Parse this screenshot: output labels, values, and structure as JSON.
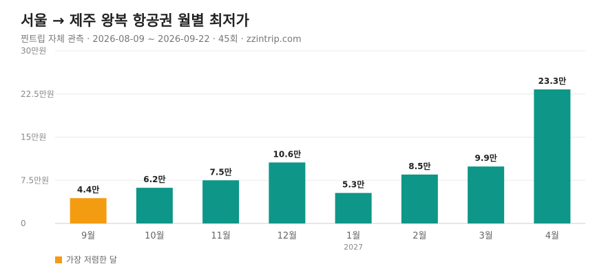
{
  "header": {
    "title": "서울 → 제주 왕복 항공권 월별 최저가",
    "subtitle": "찐트립 자체 관측 · 2026-08-09 ~ 2026-09-22 · 45회 · zzintrip.com"
  },
  "legend": {
    "label": "가장 저렴한 달",
    "color": "#F39C12"
  },
  "chart_data": {
    "type": "bar",
    "title": "서울 → 제주 왕복 항공권 월별 최저가",
    "xlabel": "",
    "ylabel": "",
    "ylim": [
      0,
      30
    ],
    "yticks": [
      {
        "value": 0,
        "label": "0"
      },
      {
        "value": 7.5,
        "label": "7.5만원"
      },
      {
        "value": 15,
        "label": "15만원"
      },
      {
        "value": 22.5,
        "label": "22.5만원"
      },
      {
        "value": 30,
        "label": "30만원"
      }
    ],
    "categories": [
      "9월",
      "10월",
      "11월",
      "12월",
      "1월",
      "2월",
      "3월",
      "4월"
    ],
    "category_sublabels": [
      "",
      "",
      "",
      "",
      "2027",
      "",
      "",
      ""
    ],
    "values": [
      4.4,
      6.2,
      7.5,
      10.6,
      5.3,
      8.5,
      9.9,
      23.3
    ],
    "value_labels": [
      "4.4만",
      "6.2만",
      "7.5만",
      "10.6만",
      "5.3만",
      "8.5만",
      "9.9만",
      "23.3만"
    ],
    "highlight_index": 0,
    "bar_color": "#0E9688",
    "highlight_color": "#F39C12",
    "grid": true,
    "legend_position": "bottom-left"
  }
}
